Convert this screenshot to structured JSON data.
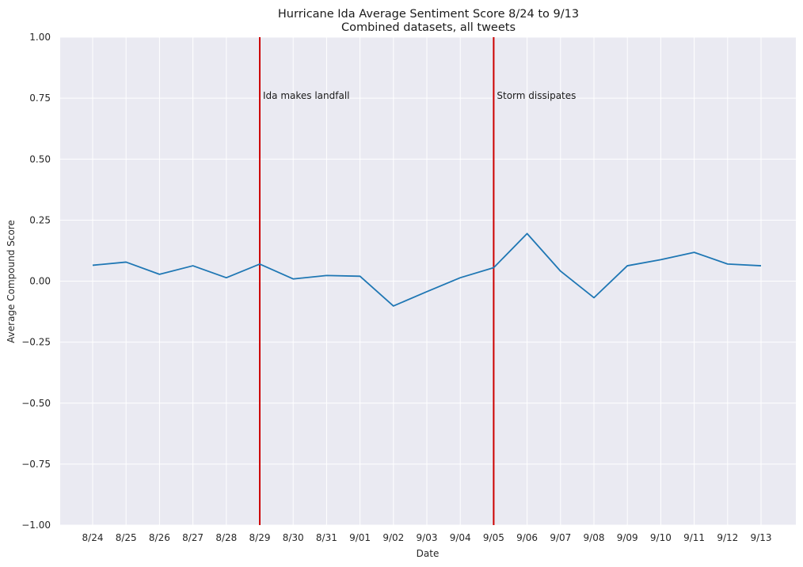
{
  "chart_data": {
    "type": "line",
    "title": "Hurricane Ida Average Sentiment Score 8/24 to 9/13",
    "subtitle": "Combined datasets, all tweets",
    "xlabel": "Date",
    "ylabel": "Average Compound Score",
    "ylim": [
      -1.0,
      1.0
    ],
    "yticks": [
      "−1.00",
      "−0.75",
      "−0.50",
      "−0.25",
      "0.00",
      "0.25",
      "0.50",
      "0.75",
      "1.00"
    ],
    "ytick_values": [
      -1.0,
      -0.75,
      -0.5,
      -0.25,
      0.0,
      0.25,
      0.5,
      0.75,
      1.0
    ],
    "categories": [
      "8/24",
      "8/25",
      "8/26",
      "8/27",
      "8/28",
      "8/29",
      "8/30",
      "8/31",
      "9/01",
      "9/02",
      "9/03",
      "9/04",
      "9/05",
      "9/06",
      "9/07",
      "9/08",
      "9/09",
      "9/10",
      "9/11",
      "9/12",
      "9/13"
    ],
    "series": [
      {
        "color": "#1f77b4",
        "values": [
          0.065,
          0.078,
          0.028,
          0.063,
          0.014,
          0.07,
          0.009,
          0.023,
          0.02,
          -0.102,
          -0.043,
          0.014,
          0.055,
          0.195,
          0.041,
          -0.068,
          0.063,
          0.088,
          0.118,
          0.07,
          0.063
        ]
      }
    ],
    "annotations": [
      {
        "x": "8/29",
        "label": "Ida makes landfall",
        "color": "#cc0000",
        "y": 0.75
      },
      {
        "x": "9/05",
        "label": "Storm dissipates",
        "color": "#cc0000",
        "y": 0.75
      }
    ],
    "grid": true,
    "background": "#eaeaf2",
    "grid_color": "#ffffff"
  }
}
